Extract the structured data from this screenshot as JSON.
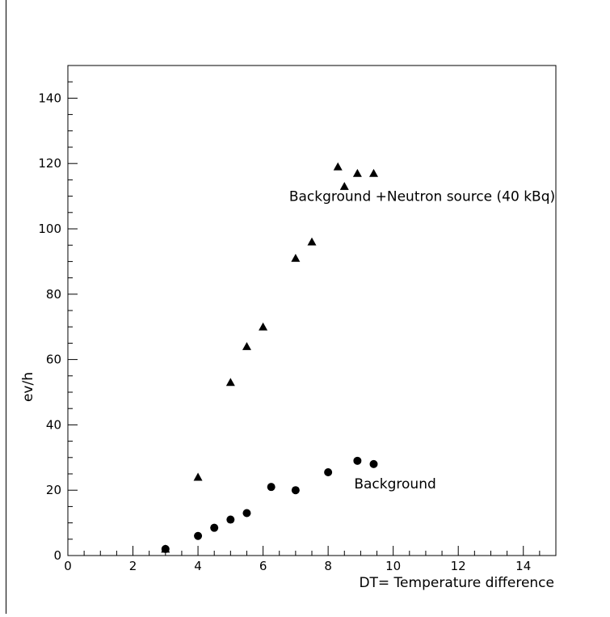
{
  "chart_data": {
    "type": "scatter",
    "title": "",
    "xlabel": "DT= Temperature difference",
    "ylabel": "ev/h",
    "xlim": [
      0,
      15
    ],
    "ylim": [
      0,
      150
    ],
    "x_ticks": [
      0,
      2,
      4,
      6,
      8,
      10,
      12,
      14
    ],
    "x_tick_labels": [
      "0",
      "2",
      "4",
      "6",
      "8",
      "10",
      "12",
      "14"
    ],
    "y_ticks": [
      0,
      20,
      40,
      60,
      80,
      100,
      120,
      140
    ],
    "y_tick_labels": [
      "0",
      "20",
      "40",
      "60",
      "80",
      "100",
      "120",
      "140"
    ],
    "grid": false,
    "legend": "none",
    "series": [
      {
        "name": "Background +Neutron source (40 kBq)",
        "marker": "triangle",
        "color": "#000000",
        "x": [
          3,
          4,
          5,
          5.5,
          6,
          7,
          7.5,
          8.3,
          8.5,
          8.9,
          9.4
        ],
        "y": [
          2,
          24,
          53,
          64,
          70,
          91,
          96,
          119,
          113,
          117,
          117
        ]
      },
      {
        "name": "Background",
        "marker": "circle",
        "color": "#000000",
        "x": [
          3,
          4,
          4.5,
          5,
          5.5,
          6.25,
          7,
          8,
          8.9,
          9.4
        ],
        "y": [
          2,
          6,
          8.5,
          11,
          13,
          21,
          20,
          25.5,
          29,
          28
        ]
      }
    ],
    "annotations": [
      {
        "text": "Background +Neutron source (40 kBq)",
        "x": 6.8,
        "y": 110
      },
      {
        "text": "Background",
        "x": 8.8,
        "y": 22
      }
    ]
  }
}
